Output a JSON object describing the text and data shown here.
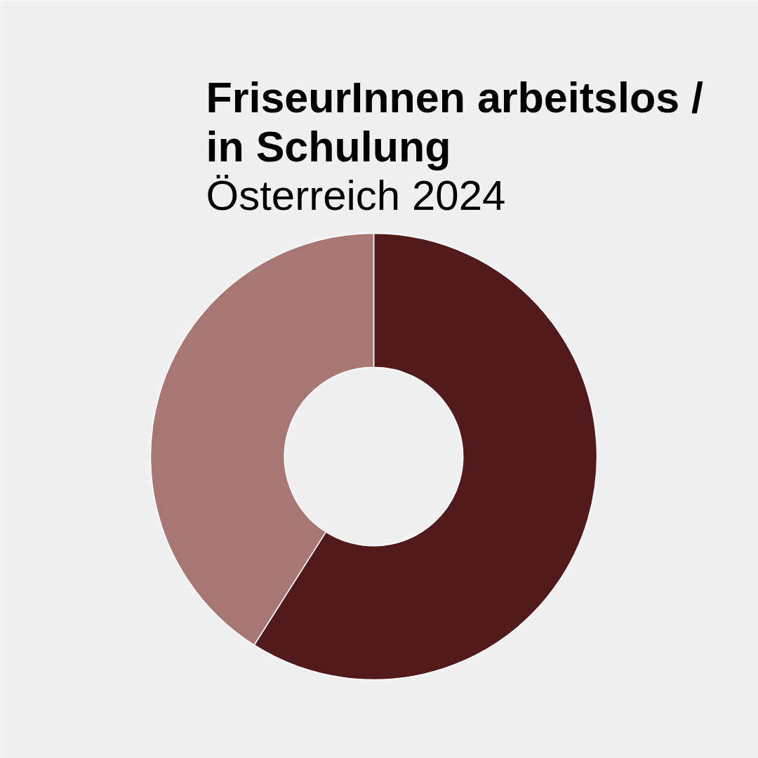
{
  "chart_data": {
    "type": "donut",
    "title": "FriseurInnen arbeitslos / in Schulung",
    "subtitle": "Österreich 2024",
    "categories": [
      null,
      null
    ],
    "values": [
      59,
      41
    ],
    "colors": [
      "#531a1c",
      "#a87774"
    ]
  }
}
